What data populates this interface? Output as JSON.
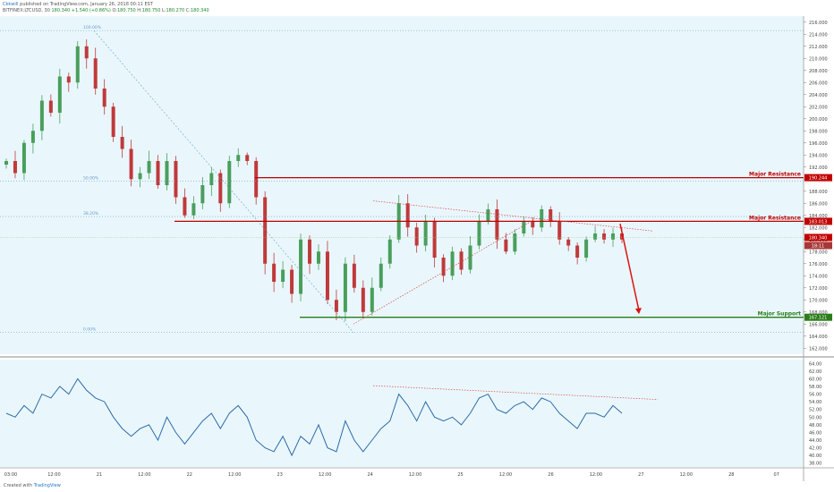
{
  "header": {
    "author": "Ckkwill",
    "published_text": "published on TradingView.com, January 26, 2018 00:11 EST",
    "symbol_line": "BITFINEX:LTCUSD, 30",
    "last_price": "180.340",
    "change_text": "+1.540 (+0.86%)",
    "o": "180.750",
    "h": "180.750",
    "l": "180.270",
    "c": "180.340"
  },
  "footer": {
    "created_with": "Created with",
    "brand": "TradingView"
  },
  "colors": {
    "background": "#e9f7fc",
    "up_candle": "#4a9e5c",
    "down_candle": "#c0393b",
    "resistance": "#c00000",
    "support": "#2a7d1a",
    "rsi_line": "#2c6aa8",
    "fib_line": "#6a9cc6"
  },
  "chart_data": {
    "type": "candlestick",
    "price_axis": {
      "ylim": [
        161,
        217
      ],
      "ticks": [
        162,
        164,
        166,
        168,
        170,
        172,
        174,
        176,
        178,
        180,
        182,
        184,
        186,
        188,
        190,
        192,
        194,
        196,
        198,
        200,
        202,
        204,
        206,
        208,
        210,
        212,
        214,
        216
      ]
    },
    "time_axis": {
      "labels": [
        "03:00",
        "12:00",
        "21",
        "12:00",
        "22",
        "12:00",
        "23",
        "12:00",
        "24",
        "12:00",
        "25",
        "12:00",
        "26",
        "12:00",
        "27",
        "12:00",
        "28",
        "07"
      ]
    },
    "levels": [
      {
        "label": "Major Resistance",
        "price": 190.244,
        "price_label": "190.244",
        "role": "resistance"
      },
      {
        "label": "Major Resistance",
        "price": 183.013,
        "price_label": "183.013",
        "role": "resistance"
      },
      {
        "label": "Major Support",
        "price": 167.121,
        "price_label": "167.121",
        "role": "support"
      }
    ],
    "last_price_tag": {
      "price": 180.34,
      "label": "180.340",
      "countdown": "18:11"
    },
    "fibonacci": [
      {
        "label": "100.00%",
        "price": 214.6
      },
      {
        "label": "50.00%",
        "price": 189.7
      },
      {
        "label": "38.20%",
        "price": 183.8
      },
      {
        "label": "0.00%",
        "price": 164.6
      }
    ],
    "close_path": [
      193,
      191,
      196,
      198,
      203,
      201,
      207,
      206,
      212,
      210,
      205,
      202,
      197,
      195,
      190,
      191,
      193,
      189,
      193,
      187,
      184,
      186,
      189,
      191,
      186,
      193,
      194,
      193,
      187,
      176,
      173,
      175,
      171,
      180,
      176,
      178,
      170,
      168,
      176,
      172,
      168,
      172,
      176,
      180,
      186,
      182,
      179,
      183,
      177,
      174,
      178,
      175,
      179,
      183,
      185,
      180,
      178,
      181,
      183,
      182,
      185,
      183,
      180,
      179,
      177,
      180,
      181,
      180,
      181,
      180
    ],
    "rsi": {
      "ylim": [
        37,
        65
      ],
      "ticks": [
        38,
        40,
        42,
        44,
        46,
        48,
        50,
        52,
        54,
        56,
        58,
        60,
        62,
        64
      ],
      "values": [
        51,
        50,
        53,
        51,
        56,
        55,
        58,
        56,
        60,
        57,
        55,
        54,
        50,
        47,
        45,
        47,
        48,
        44,
        50,
        46,
        43,
        46,
        49,
        51,
        47,
        51,
        53,
        50,
        44,
        42,
        41,
        45,
        40,
        45,
        43,
        48,
        42,
        41,
        49,
        44,
        41,
        44,
        47,
        49,
        56,
        53,
        49,
        54,
        50,
        49,
        50,
        48,
        51,
        55,
        56,
        52,
        51,
        53,
        54,
        52,
        55,
        54,
        51,
        49,
        47,
        51,
        51,
        50,
        53,
        51
      ]
    }
  }
}
